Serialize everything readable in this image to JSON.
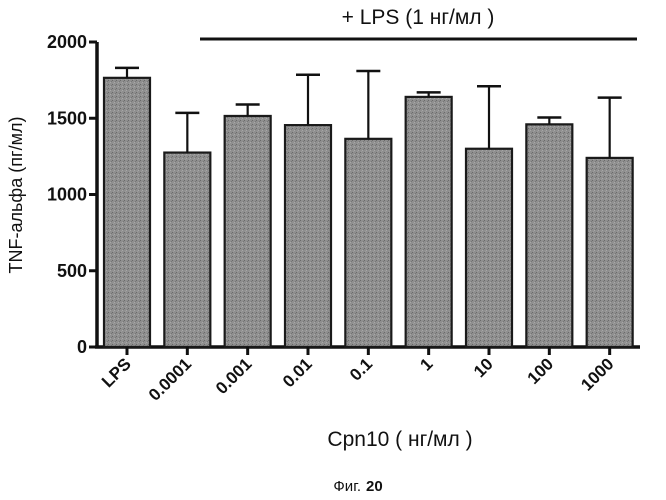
{
  "chart_data": {
    "type": "bar",
    "categories": [
      "LPS",
      "0.0001",
      "0.001",
      "0.01",
      "0.1",
      "1",
      "10",
      "100",
      "1000"
    ],
    "values": [
      1765,
      1275,
      1515,
      1455,
      1365,
      1640,
      1300,
      1460,
      1240
    ],
    "error_plus": [
      65,
      260,
      75,
      330,
      445,
      30,
      410,
      45,
      395
    ],
    "title": "",
    "xlabel": "Cpn10 ( нг/мл )",
    "ylabel": "TNF-альфа (пг/мл)",
    "ylim": [
      0,
      2000
    ],
    "yticks": [
      "0",
      "500",
      "1000",
      "1500",
      "2000"
    ],
    "ytick_values": [
      0,
      500,
      1000,
      1500,
      2000
    ],
    "annotation": "+ LPS (1 нг/мл )",
    "annotation_span": [
      "0.0001",
      "1000"
    ],
    "bar_color": "#8f8f8f",
    "grid": false,
    "legend": "none"
  },
  "caption": {
    "prefix": "Фиг.",
    "number": "20"
  }
}
